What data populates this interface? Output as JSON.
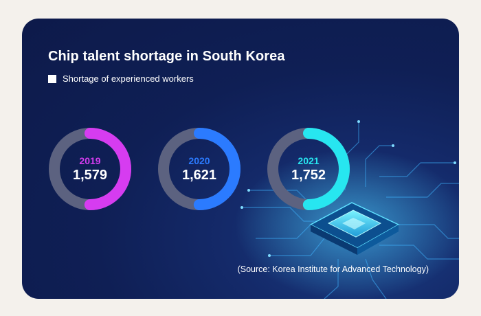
{
  "chart_data": {
    "type": "pie",
    "title": "Chip talent shortage in South Korea",
    "legend": {
      "label": "Shortage of experienced workers",
      "swatch_color": "#ffffff",
      "placement": "top-left"
    },
    "categories": [
      "2019",
      "2020",
      "2021"
    ],
    "values": [
      "1,579",
      "1,621",
      "1,752"
    ],
    "fill_fractions": [
      0.5,
      0.5,
      0.5
    ],
    "colors": [
      "#d63cf0",
      "#2b7bff",
      "#27e6f0"
    ],
    "track_color": "#5c6280",
    "source": "(Source: Korea Institute for Advanced Technology)"
  }
}
